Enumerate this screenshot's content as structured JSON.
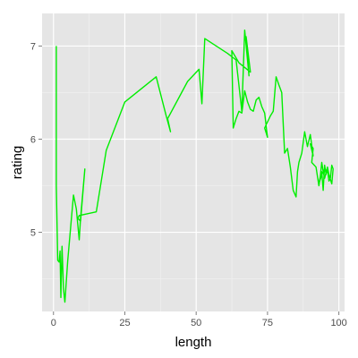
{
  "chart_data": {
    "type": "line",
    "title": "",
    "xlabel": "length",
    "ylabel": "rating",
    "xlim": [
      -4,
      102
    ],
    "ylim": [
      4.15,
      7.35
    ],
    "grid": true,
    "legend": "none",
    "x_ticks": [
      0,
      25,
      50,
      75,
      100
    ],
    "y_ticks": [
      5,
      6,
      7
    ],
    "colors": {
      "line": "#00ee00",
      "panel": "#e5e5e5",
      "grid_major": "#ffffff",
      "grid_minor": "#f2f2f2"
    },
    "series": [
      {
        "x": [
          1,
          1,
          1.5,
          2,
          2.3,
          2.6,
          3,
          3.5,
          4,
          5,
          6,
          7,
          8,
          9,
          9.5,
          11,
          9.5,
          8.5,
          9,
          15,
          18.5,
          25,
          36,
          39.5,
          41,
          40,
          47,
          51,
          52,
          53,
          61,
          64,
          66,
          67,
          68.5,
          67.5,
          69,
          65,
          62.5,
          63,
          64,
          65,
          66,
          67,
          68,
          69,
          70,
          71,
          72,
          73,
          74,
          75,
          74,
          76,
          77,
          78,
          79,
          80,
          81,
          82,
          83,
          84,
          85,
          85.5,
          86,
          87,
          88,
          89,
          90,
          91,
          90,
          91,
          90.5,
          92,
          93,
          93.5,
          94,
          94.5,
          95,
          95.5,
          96,
          96.5,
          97,
          97.5,
          98,
          97.5,
          96.5,
          96,
          95,
          94.5,
          94,
          93.5,
          93,
          94,
          95,
          96
        ],
        "y": [
          7,
          5.5,
          4.7,
          4.68,
          4.8,
          4.3,
          4.85,
          4.4,
          4.25,
          4.7,
          5.05,
          5.4,
          5.25,
          4.92,
          5.15,
          5.68,
          5.12,
          5.15,
          5.18,
          5.22,
          5.88,
          6.4,
          6.67,
          6.25,
          6.08,
          6.22,
          6.62,
          6.75,
          6.38,
          7.08,
          6.92,
          6.85,
          6.3,
          7.17,
          6.68,
          7.1,
          6.72,
          6.82,
          6.95,
          6.12,
          6.22,
          6.3,
          6.28,
          6.52,
          6.4,
          6.32,
          6.3,
          6.42,
          6.45,
          6.35,
          6.28,
          6.02,
          6.12,
          6.25,
          6.3,
          6.67,
          6.58,
          6.5,
          5.85,
          5.9,
          5.7,
          5.45,
          5.38,
          5.65,
          5.75,
          5.85,
          6.08,
          5.92,
          6.05,
          5.82,
          5.95,
          5.9,
          5.75,
          5.7,
          5.5,
          5.6,
          5.65,
          5.45,
          5.72,
          5.62,
          5.68,
          5.55,
          5.58,
          5.72,
          5.68,
          5.52,
          5.62,
          5.7,
          5.58,
          5.65,
          5.75,
          5.6,
          5.52,
          5.62,
          5.68,
          5.65
        ]
      }
    ]
  }
}
